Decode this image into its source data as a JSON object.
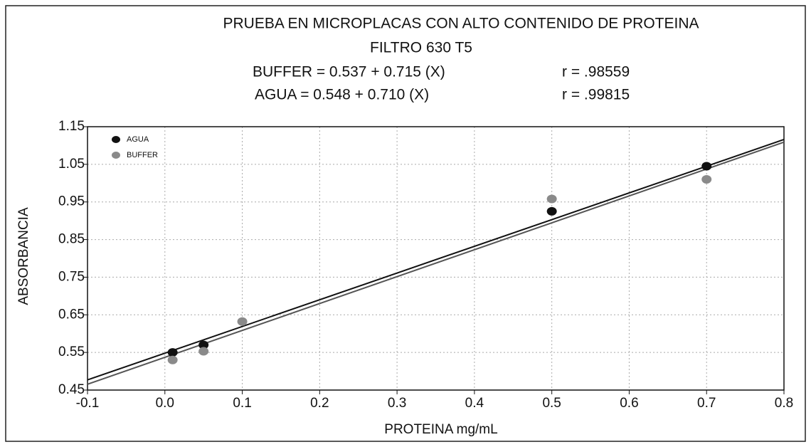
{
  "chart_data": {
    "type": "scatter",
    "title": "PRUEBA EN MICROPLACAS CON ALTO CONTENIDO DE PROTEINA",
    "subtitle": "FILTRO 630 T5",
    "annotations": [
      "BUFFER = 0.537 + 0.715  (X)",
      "r = .98559",
      "AGUA = 0.548 + 0.710  (X)",
      "r = .99815"
    ],
    "x_label": "PROTEINA mg/mL",
    "y_label": "ABSORBANCIA",
    "series": [
      {
        "name": "AGUA",
        "color": "#111111",
        "x": [
          0.01,
          0.05,
          0.5,
          0.7
        ],
        "values": [
          0.55,
          0.57,
          0.925,
          1.045
        ],
        "fit": {
          "intercept": 0.548,
          "slope": 0.71
        }
      },
      {
        "name": "BUFFER",
        "color": "#8a8a8a",
        "x": [
          0.01,
          0.05,
          0.1,
          0.5,
          0.7
        ],
        "values": [
          0.53,
          0.553,
          0.632,
          0.958,
          1.01
        ],
        "fit": {
          "intercept": 0.537,
          "slope": 0.715
        }
      }
    ],
    "xlim": [
      -0.1,
      0.8
    ],
    "xticks": [
      -0.1,
      {
        "value": 0,
        "label": "0.0"
      },
      0.1,
      0.2,
      0.3,
      0.4,
      0.5,
      0.6,
      0.7,
      0.8
    ],
    "ylim": [
      0.45,
      1.15
    ],
    "yticks": [
      0.45,
      0.55,
      0.65,
      0.75,
      0.85,
      0.95,
      1.05,
      1.15
    ],
    "grid": true,
    "legend": "upper-left"
  }
}
